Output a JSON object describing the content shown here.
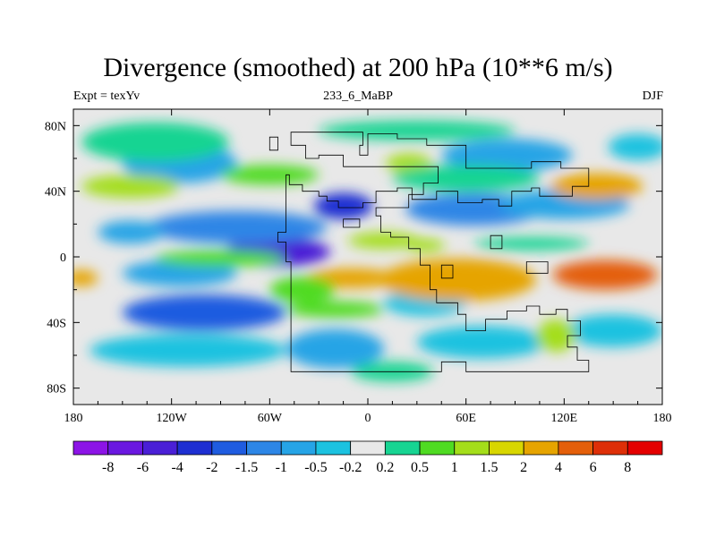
{
  "title": "Divergence (smoothed) at 200 hPa (10**6 m/s)",
  "subtitle": {
    "left": "Expt = texYv",
    "center": "233_6_MaBP",
    "right": "DJF"
  },
  "chart_data": {
    "type": "heatmap",
    "title": "Divergence (smoothed) at 200 hPa (10**6 m/s)",
    "x_range": [
      -180,
      180
    ],
    "y_range": [
      -90,
      90
    ],
    "xticks": [
      {
        "value": -180,
        "label": "180"
      },
      {
        "value": -120,
        "label": "120W"
      },
      {
        "value": -60,
        "label": "60W"
      },
      {
        "value": 0,
        "label": "0"
      },
      {
        "value": 60,
        "label": "60E"
      },
      {
        "value": 120,
        "label": "120E"
      },
      {
        "value": 180,
        "label": "180"
      }
    ],
    "yticks": [
      {
        "value": 80,
        "label": "80N"
      },
      {
        "value": 40,
        "label": "40N"
      },
      {
        "value": 0,
        "label": "0"
      },
      {
        "value": -40,
        "label": "40S"
      },
      {
        "value": -80,
        "label": "80S"
      }
    ],
    "colorbar": {
      "levels": [
        "-8",
        "-6",
        "-4",
        "-2",
        "-1.5",
        "-1",
        "-0.5",
        "-0.2",
        "0.2",
        "0.5",
        "1",
        "1.5",
        "2",
        "4",
        "6",
        "8"
      ],
      "colors": [
        "#8c14e6",
        "#6a18e0",
        "#4a1fd6",
        "#1e2fd2",
        "#1f5ce0",
        "#2d86e6",
        "#26a4e6",
        "#1cc2e0",
        "#e8e8e8",
        "#17d492",
        "#4fdb22",
        "#a4de1a",
        "#d8d600",
        "#e6a400",
        "#e45f0a",
        "#de2f08",
        "#e40000"
      ]
    },
    "features": [
      {
        "lon": -55,
        "lat": 3,
        "rx": 32,
        "ry": 9,
        "value": -6
      },
      {
        "lon": -15,
        "lat": 31,
        "rx": 18,
        "ry": 8,
        "value": -2.5
      },
      {
        "lon": 65,
        "lat": 29,
        "rx": 42,
        "ry": 10,
        "value": -1.2
      },
      {
        "lon": 120,
        "lat": 32,
        "rx": 40,
        "ry": 9,
        "value": -0.8
      },
      {
        "lon": -80,
        "lat": 18,
        "rx": 55,
        "ry": 10,
        "value": -1.2
      },
      {
        "lon": -145,
        "lat": 15,
        "rx": 20,
        "ry": 7,
        "value": -0.8
      },
      {
        "lon": -115,
        "lat": 57,
        "rx": 35,
        "ry": 12,
        "value": -0.8
      },
      {
        "lon": 85,
        "lat": 62,
        "rx": 40,
        "ry": 10,
        "value": -0.6
      },
      {
        "lon": 165,
        "lat": 67,
        "rx": 18,
        "ry": 8,
        "value": -0.4
      },
      {
        "lon": -100,
        "lat": -34,
        "rx": 50,
        "ry": 11,
        "value": -2
      },
      {
        "lon": -115,
        "lat": -10,
        "rx": 35,
        "ry": 8,
        "value": -0.7
      },
      {
        "lon": -110,
        "lat": -57,
        "rx": 60,
        "ry": 10,
        "value": -0.5
      },
      {
        "lon": -20,
        "lat": -56,
        "rx": 30,
        "ry": 12,
        "value": -0.6
      },
      {
        "lon": 35,
        "lat": -28,
        "rx": 25,
        "ry": 8,
        "value": -0.5
      },
      {
        "lon": 70,
        "lat": -52,
        "rx": 40,
        "ry": 10,
        "value": -0.5
      },
      {
        "lon": 150,
        "lat": -45,
        "rx": 30,
        "ry": 10,
        "value": -0.5
      },
      {
        "lon": 55,
        "lat": -14,
        "rx": 48,
        "ry": 13,
        "value": 2.5
      },
      {
        "lon": 145,
        "lat": -11,
        "rx": 32,
        "ry": 9,
        "value": 5
      },
      {
        "lon": -10,
        "lat": -13,
        "rx": 28,
        "ry": 6,
        "value": 2
      },
      {
        "lon": -175,
        "lat": -13,
        "rx": 10,
        "ry": 5,
        "value": 2
      },
      {
        "lon": -90,
        "lat": -1,
        "rx": 40,
        "ry": 5,
        "value": 0.8
      },
      {
        "lon": 140,
        "lat": 43,
        "rx": 28,
        "ry": 8,
        "value": 2
      },
      {
        "lon": -145,
        "lat": 43,
        "rx": 30,
        "ry": 7,
        "value": 1.3
      },
      {
        "lon": 25,
        "lat": 57,
        "rx": 14,
        "ry": 6,
        "value": 1.3
      },
      {
        "lon": 10,
        "lat": 10,
        "rx": 22,
        "ry": 5,
        "value": 1.1
      },
      {
        "lon": 35,
        "lat": 7,
        "rx": 12,
        "ry": 4,
        "value": 1.3
      },
      {
        "lon": 115,
        "lat": -48,
        "rx": 12,
        "ry": 10,
        "value": 1.2
      },
      {
        "lon": -40,
        "lat": -20,
        "rx": 20,
        "ry": 8,
        "value": 0.6
      },
      {
        "lon": 60,
        "lat": 48,
        "rx": 45,
        "ry": 8,
        "value": 0.4
      },
      {
        "lon": -130,
        "lat": 70,
        "rx": 45,
        "ry": 12,
        "value": 0.3
      },
      {
        "lon": 30,
        "lat": 77,
        "rx": 60,
        "ry": 6,
        "value": 0.3
      },
      {
        "lon": -60,
        "lat": 50,
        "rx": 30,
        "ry": 6,
        "value": 0.5
      },
      {
        "lon": 100,
        "lat": 8,
        "rx": 35,
        "ry": 4,
        "value": 0.4
      },
      {
        "lon": -20,
        "lat": -32,
        "rx": 30,
        "ry": 5,
        "value": 0.5
      },
      {
        "lon": 15,
        "lat": -70,
        "rx": 25,
        "ry": 6,
        "value": 0.3
      }
    ],
    "overlay": {
      "outline": [
        [
          -47,
          76
        ],
        [
          -3,
          76
        ],
        [
          -3,
          68
        ],
        [
          -5,
          68
        ],
        [
          -5,
          62
        ],
        [
          0,
          62
        ],
        [
          0,
          75
        ],
        [
          18,
          75
        ],
        [
          18,
          72
        ],
        [
          36,
          72
        ],
        [
          36,
          68
        ],
        [
          60,
          68
        ],
        [
          60,
          54
        ],
        [
          100,
          54
        ],
        [
          100,
          58
        ],
        [
          118,
          58
        ],
        [
          118,
          54
        ],
        [
          135,
          54
        ],
        [
          135,
          43
        ],
        [
          125,
          43
        ],
        [
          125,
          37
        ],
        [
          105,
          37
        ],
        [
          105,
          42
        ],
        [
          100,
          42
        ],
        [
          100,
          40
        ],
        [
          88,
          40
        ],
        [
          88,
          31
        ],
        [
          80,
          31
        ],
        [
          80,
          35
        ],
        [
          70,
          35
        ],
        [
          70,
          33
        ],
        [
          55,
          33
        ],
        [
          55,
          40
        ],
        [
          42,
          40
        ],
        [
          42,
          35
        ],
        [
          27,
          35
        ],
        [
          27,
          42
        ],
        [
          18,
          42
        ],
        [
          18,
          40
        ],
        [
          5,
          40
        ],
        [
          5,
          33
        ],
        [
          -3,
          33
        ],
        [
          -3,
          30
        ],
        [
          -18,
          30
        ],
        [
          -18,
          34
        ],
        [
          -25,
          34
        ],
        [
          -25,
          37
        ],
        [
          -30,
          37
        ],
        [
          -30,
          40
        ],
        [
          -40,
          40
        ],
        [
          -40,
          44
        ],
        [
          -48,
          44
        ],
        [
          -48,
          50
        ],
        [
          -50,
          50
        ],
        [
          -50,
          15
        ],
        [
          -55,
          15
        ],
        [
          -55,
          9
        ],
        [
          -50,
          9
        ],
        [
          -50,
          -3
        ],
        [
          -47,
          -3
        ],
        [
          -47,
          -70
        ],
        [
          45,
          -70
        ],
        [
          45,
          -64
        ],
        [
          60,
          -64
        ],
        [
          60,
          -70
        ],
        [
          135,
          -70
        ],
        [
          135,
          -63
        ],
        [
          128,
          -63
        ],
        [
          128,
          -55
        ],
        [
          122,
          -55
        ],
        [
          122,
          -48
        ],
        [
          130,
          -48
        ],
        [
          130,
          -39
        ],
        [
          122,
          -39
        ],
        [
          122,
          -32
        ],
        [
          115,
          -32
        ],
        [
          115,
          -35
        ],
        [
          105,
          -35
        ],
        [
          105,
          -30
        ],
        [
          97,
          -30
        ],
        [
          97,
          -33
        ],
        [
          85,
          -33
        ],
        [
          85,
          -38
        ],
        [
          72,
          -38
        ],
        [
          72,
          -45
        ],
        [
          60,
          -45
        ],
        [
          60,
          -35
        ],
        [
          55,
          -35
        ],
        [
          55,
          -28
        ],
        [
          42,
          -28
        ],
        [
          42,
          -20
        ],
        [
          38,
          -20
        ],
        [
          38,
          -5
        ],
        [
          32,
          -5
        ],
        [
          32,
          5
        ],
        [
          25,
          5
        ],
        [
          25,
          12
        ],
        [
          14,
          12
        ],
        [
          14,
          15
        ],
        [
          8,
          15
        ],
        [
          8,
          25
        ],
        [
          5,
          25
        ],
        [
          5,
          30
        ],
        [
          25,
          30
        ],
        [
          25,
          38
        ],
        [
          34,
          38
        ],
        [
          34,
          45
        ],
        [
          43,
          45
        ],
        [
          43,
          55
        ],
        [
          -15,
          55
        ],
        [
          -15,
          62
        ],
        [
          -30,
          62
        ],
        [
          -30,
          60
        ],
        [
          -38,
          60
        ],
        [
          -38,
          68
        ],
        [
          -47,
          68
        ]
      ],
      "blocks": [
        [
          [
            -60,
            73
          ],
          [
            -55,
            73
          ],
          [
            -55,
            65
          ],
          [
            -60,
            65
          ]
        ],
        [
          [
            45,
            -5
          ],
          [
            52,
            -5
          ],
          [
            52,
            -13
          ],
          [
            45,
            -13
          ]
        ],
        [
          [
            75,
            13
          ],
          [
            82,
            13
          ],
          [
            82,
            5
          ],
          [
            75,
            5
          ]
        ],
        [
          [
            97,
            -3
          ],
          [
            110,
            -3
          ],
          [
            110,
            -10
          ],
          [
            97,
            -10
          ]
        ],
        [
          [
            -15,
            23
          ],
          [
            -5,
            23
          ],
          [
            -5,
            18
          ],
          [
            -15,
            18
          ]
        ]
      ]
    }
  }
}
